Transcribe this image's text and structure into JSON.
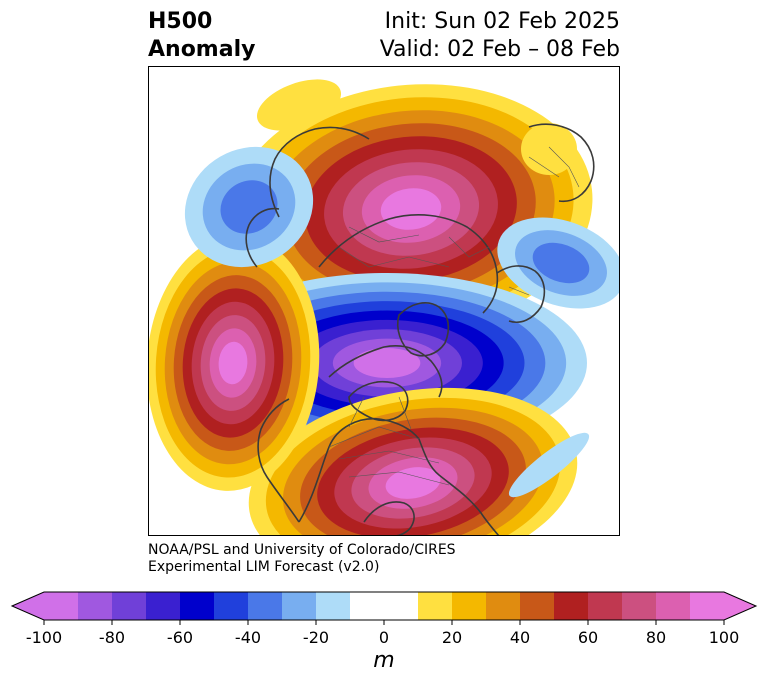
{
  "title": {
    "left_line1": "H500",
    "left_line2": "Anomaly",
    "right_line1": "Init: Sun 02 Feb 2025",
    "right_line2": "Valid: 02 Feb – 08 Feb"
  },
  "credit": {
    "line1": "NOAA/PSL and University of Colorado/CIRES",
    "line2": "Experimental LIM Forecast (v2.0)"
  },
  "colorbar": {
    "units": "m",
    "min": -100,
    "max": 100,
    "step": 10,
    "colors": [
      "#d070e8",
      "#a058e0",
      "#7040d8",
      "#3a20d0",
      "#0000cc",
      "#2040dc",
      "#4a78e8",
      "#78aef0",
      "#aedcf8",
      "#ffffff",
      "#ffffff",
      "#ffe040",
      "#f4b800",
      "#e08c10",
      "#c85818",
      "#b02020",
      "#c03850",
      "#cc5080",
      "#dc60b0",
      "#e878e0"
    ],
    "ticks": [
      "-100",
      "-80",
      "-60",
      "-40",
      "-20",
      "0",
      "20",
      "40",
      "60",
      "80",
      "100"
    ],
    "extend_low_color": "#d070e8",
    "extend_high_color": "#e878e0"
  },
  "map": {
    "projection": "polar-stereographic",
    "anomaly_centers": [
      {
        "sign": "positive",
        "peak": 100,
        "level_count": 9
      },
      {
        "sign": "negative",
        "peak": -100,
        "level_count": 9
      },
      {
        "sign": "positive",
        "peak": 100,
        "level_count": 9
      },
      {
        "sign": "positive",
        "peak": 100,
        "level_count": 9
      },
      {
        "sign": "negative",
        "peak": -40,
        "level_count": 3
      },
      {
        "sign": "positive",
        "peak": 20,
        "level_count": 1
      },
      {
        "sign": "positive",
        "peak": 20,
        "level_count": 1
      },
      {
        "sign": "negative",
        "peak": -30,
        "level_count": 3
      },
      {
        "sign": "negative",
        "peak": -10,
        "level_count": 1
      }
    ]
  }
}
